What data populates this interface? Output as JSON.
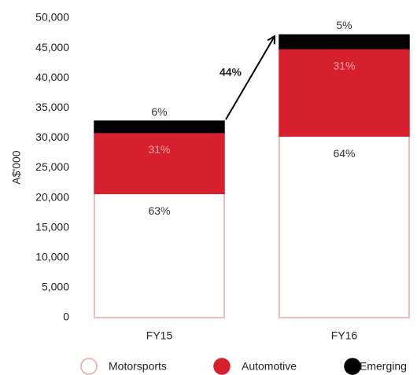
{
  "chart_data": {
    "type": "stacked_bar",
    "y_label": "A$'000",
    "categories": [
      "FY15",
      "FY16"
    ],
    "series": [
      {
        "name": "Motorsports",
        "color": "#ffffff",
        "outline": "#e8a6a6",
        "label_color": "#333333",
        "values": [
          20700,
          30300
        ],
        "share_labels": [
          "63%",
          "64%"
        ]
      },
      {
        "name": "Automotive",
        "color": "#d7202e",
        "outline": "#d7202e",
        "label_color": "#f5a3a8",
        "values": [
          10200,
          14600
        ],
        "share_labels": [
          "31%",
          "31%"
        ]
      },
      {
        "name": "Emerging",
        "color": "#000000",
        "outline": "#000000",
        "label_color": "#333333",
        "values": [
          1900,
          2300
        ],
        "share_labels": [
          "6%",
          "5%"
        ]
      }
    ],
    "annotation": "44%",
    "ylim": [
      0,
      50000
    ],
    "yticks": [
      0,
      {
        "value": 5000,
        "label": "5,000"
      },
      {
        "value": 10000,
        "label": "10,000"
      },
      {
        "value": 15000,
        "label": "15,000"
      },
      {
        "value": 20000,
        "label": "20,000"
      },
      {
        "value": 25000,
        "label": "25,000"
      },
      {
        "value": 30000,
        "label": "30,000"
      },
      {
        "value": 35000,
        "label": "35,000"
      },
      {
        "value": 40000,
        "label": "40,000"
      },
      {
        "value": 45000,
        "label": "45,000"
      },
      {
        "value": 50000,
        "label": "50,000"
      }
    ]
  }
}
